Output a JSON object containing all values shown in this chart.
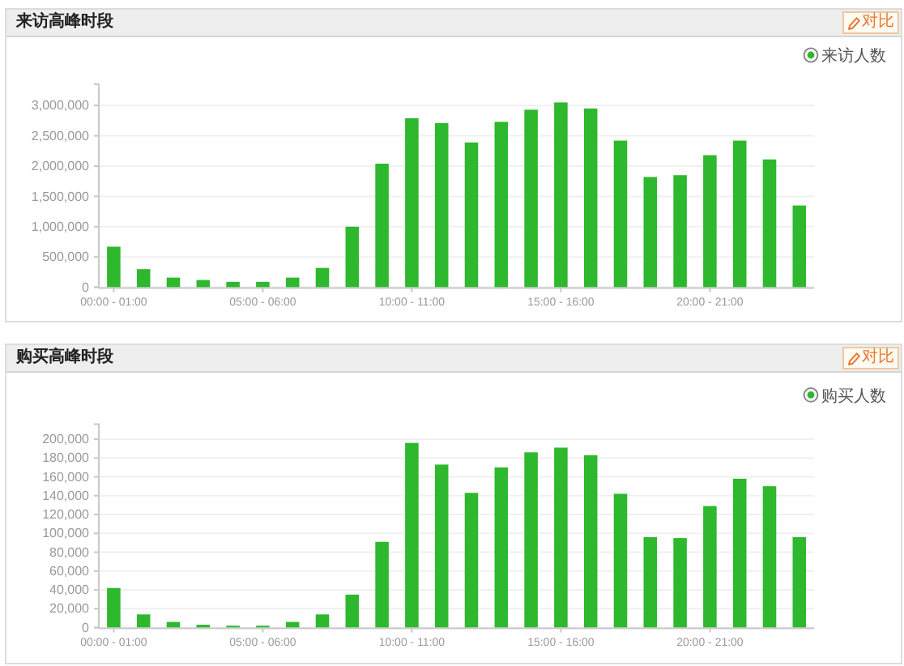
{
  "chart_data": [
    {
      "type": "bar",
      "title": "来访高峰时段",
      "annotations": [
        "对比"
      ],
      "categories": [
        "00:00 - 01:00",
        null,
        null,
        null,
        null,
        "05:00 - 06:00",
        null,
        null,
        null,
        null,
        "10:00 - 11:00",
        null,
        null,
        null,
        null,
        "15:00 - 16:00",
        null,
        null,
        null,
        null,
        "20:00 - 21:00",
        null,
        null,
        null
      ],
      "series": [
        {
          "name": "来访人数",
          "color": "#2eb82e",
          "values": [
            670000,
            300000,
            160000,
            120000,
            90000,
            90000,
            160000,
            320000,
            1000000,
            2040000,
            2790000,
            2710000,
            2390000,
            2730000,
            2930000,
            3050000,
            2950000,
            2420000,
            1820000,
            1850000,
            2180000,
            2420000,
            2110000,
            1350000
          ]
        }
      ],
      "ylim": [
        0,
        3350000
      ],
      "yticks": [
        0,
        {
          "value": 500000,
          "label": "500,000"
        },
        {
          "value": 1000000,
          "label": "1,000,000"
        },
        {
          "value": 1500000,
          "label": "1,500,000"
        },
        {
          "value": 2000000,
          "label": "2,000,000"
        },
        {
          "value": 2500000,
          "label": "2,500,000"
        },
        {
          "value": 3000000,
          "label": "3,000,000"
        }
      ],
      "grid": "y",
      "legend": "top right"
    },
    {
      "type": "bar",
      "title": "购买高峰时段",
      "annotations": [
        "对比"
      ],
      "categories": [
        "00:00 - 01:00",
        null,
        null,
        null,
        null,
        "05:00 - 06:00",
        null,
        null,
        null,
        null,
        "10:00 - 11:00",
        null,
        null,
        null,
        null,
        "15:00 - 16:00",
        null,
        null,
        null,
        null,
        "20:00 - 21:00",
        null,
        null,
        null
      ],
      "series": [
        {
          "name": "购买人数",
          "color": "#2eb82e",
          "values": [
            42000,
            14000,
            6000,
            3000,
            2000,
            2000,
            6000,
            14000,
            35000,
            91000,
            196000,
            173000,
            143000,
            170000,
            186000,
            191000,
            183000,
            142000,
            96000,
            95000,
            129000,
            158000,
            150000,
            96000
          ]
        }
      ],
      "ylim": [
        0,
        216000
      ],
      "yticks": [
        0,
        {
          "value": 20000,
          "label": "20,000"
        },
        {
          "value": 40000,
          "label": "40,000"
        },
        {
          "value": 60000,
          "label": "60,000"
        },
        {
          "value": 80000,
          "label": "80,000"
        },
        {
          "value": 100000,
          "label": "100,000"
        },
        {
          "value": 120000,
          "label": "120,000"
        },
        {
          "value": 140000,
          "label": "140,000"
        },
        {
          "value": 160000,
          "label": "160,000"
        },
        {
          "value": 180000,
          "label": "180,000"
        },
        {
          "value": 200000,
          "label": "200,000"
        }
      ],
      "grid": "y",
      "legend": "top right"
    }
  ]
}
